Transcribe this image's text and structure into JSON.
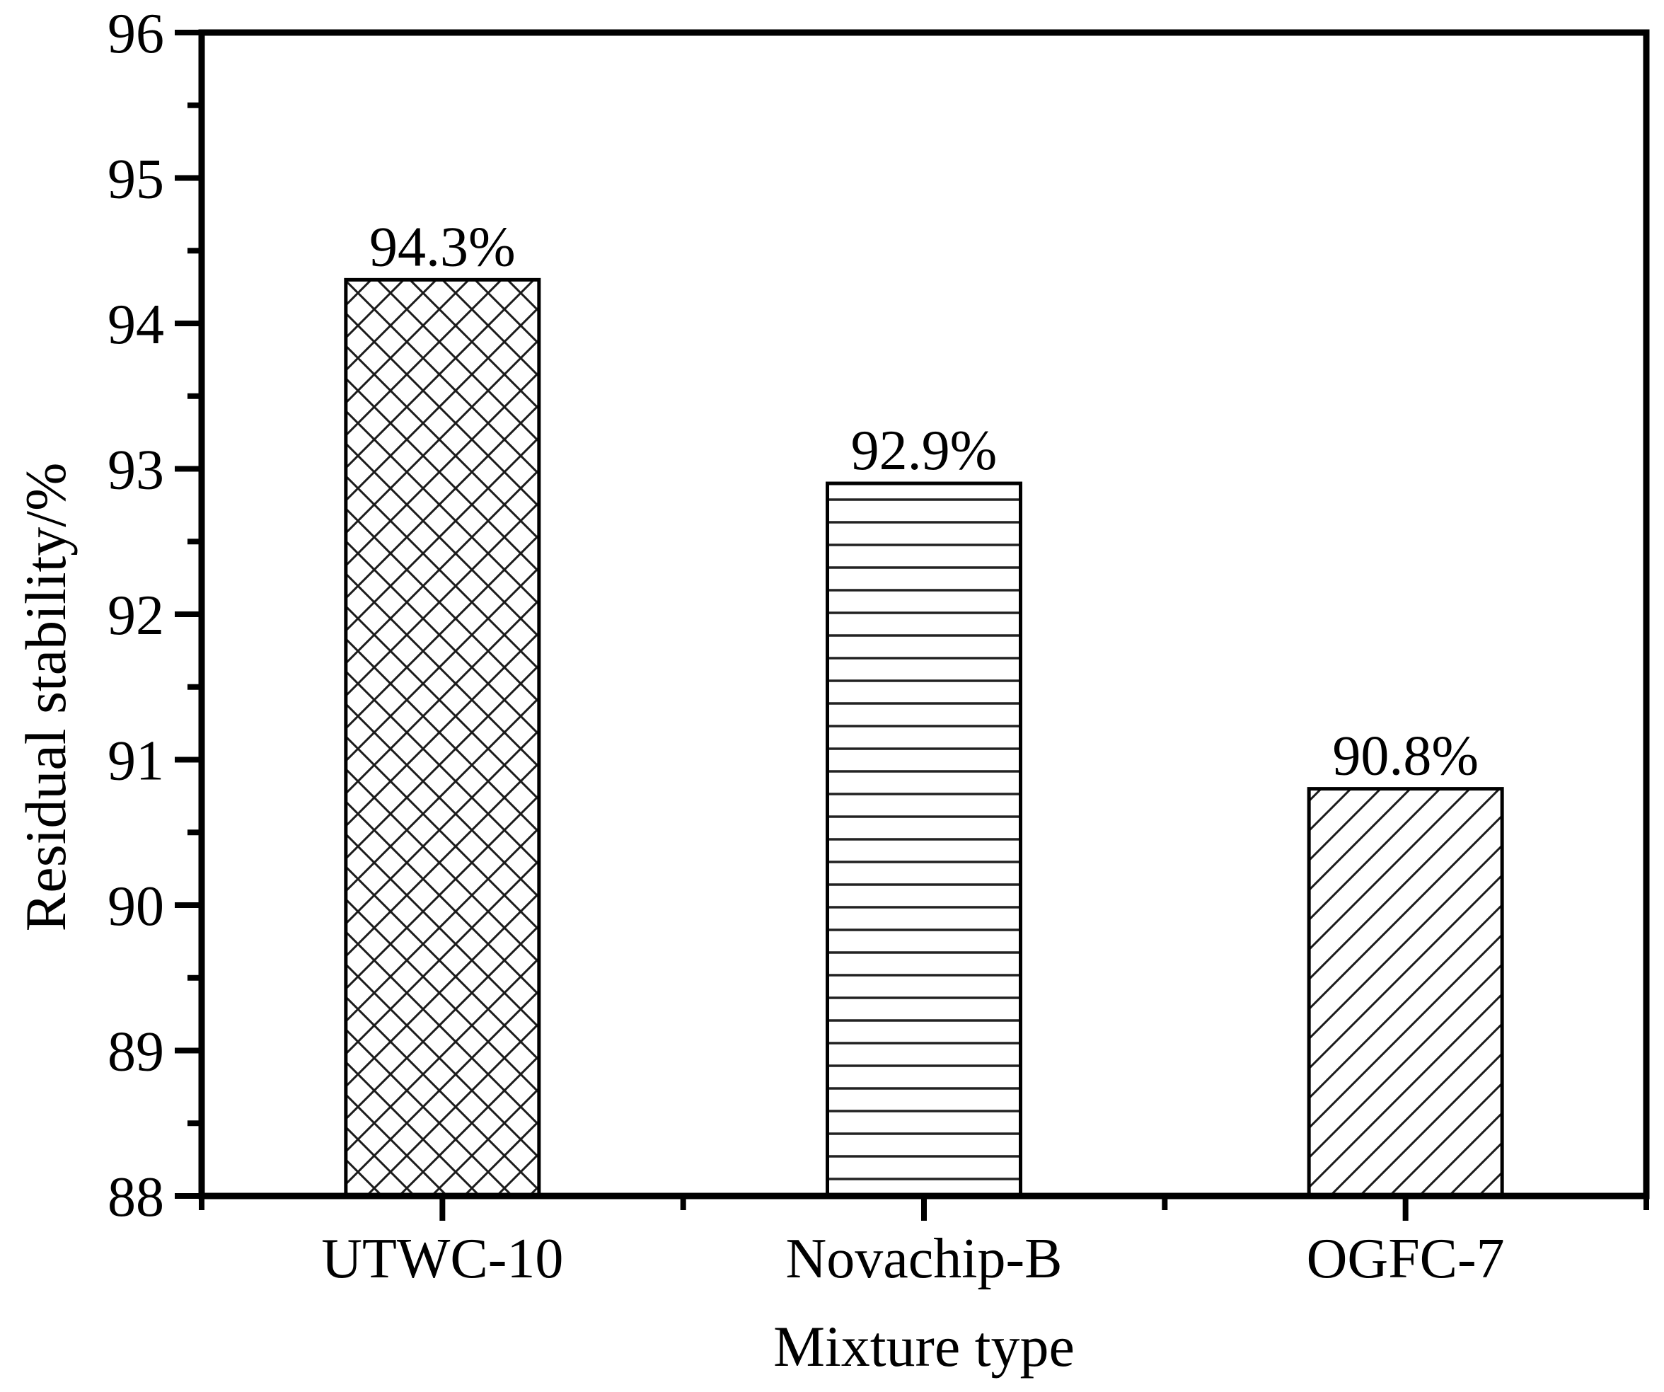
{
  "chart_data": {
    "type": "bar",
    "title": "",
    "xlabel": "Mixture type",
    "ylabel": "Residual stability/%",
    "categories": [
      "UTWC-10",
      "Novachip-B",
      "OGFC-7"
    ],
    "values": [
      94.3,
      92.9,
      90.8
    ],
    "value_labels": [
      "94.3%",
      "92.9%",
      "90.8%"
    ],
    "bar_hatches": [
      "crosshatch",
      "horizontal-lines",
      "diagonal-lines"
    ],
    "ylim": [
      88,
      96
    ],
    "y_major_step": 1,
    "y_minor_step": 0.5,
    "y_tick_labels": [
      "88",
      "89",
      "90",
      "91",
      "92",
      "93",
      "94",
      "95",
      "96"
    ],
    "grid": false,
    "legend": "none",
    "colors": {
      "background": "#ffffff",
      "axis": "#000000",
      "bar_fill": "#ffffff",
      "hatch": "#1c1c1c",
      "text": "#000000"
    }
  }
}
